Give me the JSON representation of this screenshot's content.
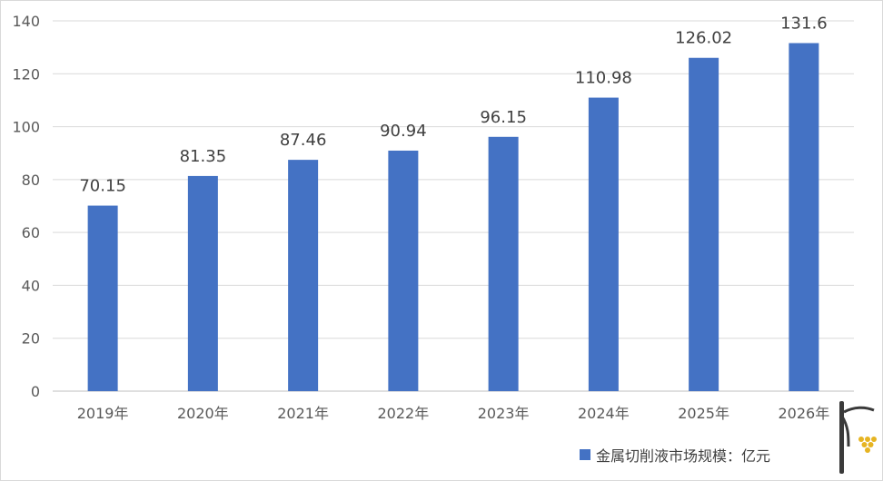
{
  "chart_data": {
    "type": "bar",
    "categories": [
      "2019年",
      "2020年",
      "2021年",
      "2022年",
      "2023年",
      "2024年",
      "2025年",
      "2026年"
    ],
    "series": [
      {
        "name": "金属切削液市场规模：亿元",
        "values": [
          70.15,
          81.35,
          87.46,
          90.94,
          96.15,
          110.98,
          126.02,
          131.6
        ],
        "labels": [
          "70.15",
          "81.35",
          "87.46",
          "90.94",
          "96.15",
          "110.98",
          "126.02",
          "131.6"
        ]
      }
    ],
    "ylim": [
      0,
      140
    ],
    "yticks": [
      "0",
      "20",
      "40",
      "60",
      "80",
      "100",
      "120",
      "140"
    ],
    "grid": true,
    "legend_position": "bottom-right",
    "colors": {
      "bar": "#4472c4",
      "grid": "#d9d9d9",
      "axis": "#bfbfbf"
    }
  },
  "logo": {
    "icon": "wine-glass-grapes-logo",
    "colors": [
      "#3a3a3a",
      "#e6b422"
    ]
  }
}
